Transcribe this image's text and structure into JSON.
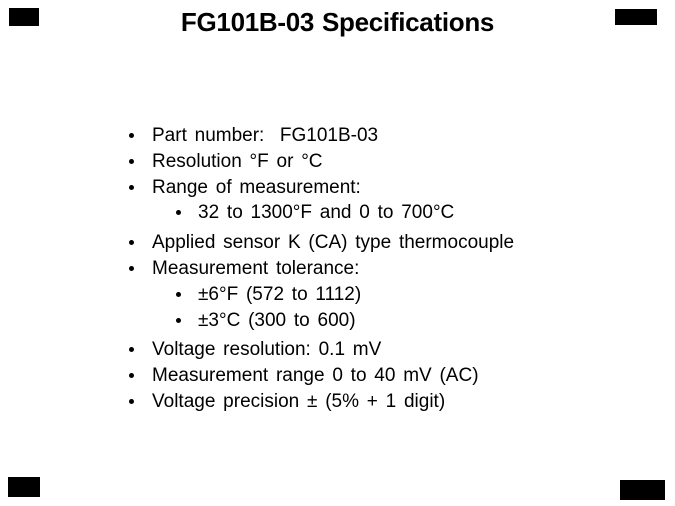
{
  "slide": {
    "title": "FG101B-03 Specifications",
    "bullets": [
      {
        "level": 1,
        "space_before": false,
        "text": "Part number:  FG101B-03"
      },
      {
        "level": 1,
        "space_before": false,
        "text": "Resolution °F or °C"
      },
      {
        "level": 1,
        "space_before": false,
        "text": "Range of measurement:"
      },
      {
        "level": 2,
        "space_before": false,
        "text": "32 to 1300°F and 0 to 700°C"
      },
      {
        "level": 1,
        "space_before": true,
        "text": "Applied sensor K (CA) type thermocouple"
      },
      {
        "level": 1,
        "space_before": false,
        "text": "Measurement tolerance:"
      },
      {
        "level": 2,
        "space_before": false,
        "text": "±6°F (572 to 1112)"
      },
      {
        "level": 2,
        "space_before": false,
        "text": "±3°C (300 to 600)"
      },
      {
        "level": 1,
        "space_before": true,
        "text": "Voltage resolution: 0.1 mV"
      },
      {
        "level": 1,
        "space_before": false,
        "text": "Measurement range 0 to 40 mV (AC)"
      },
      {
        "level": 1,
        "space_before": false,
        "text": "Voltage precision ± (5% + 1 digit)"
      }
    ],
    "colors": {
      "background": "#ffffff",
      "text": "#000000",
      "corner_marks": "#000000"
    },
    "corner_marks": [
      "top-left",
      "top-right",
      "bottom-left",
      "bottom-right"
    ]
  }
}
